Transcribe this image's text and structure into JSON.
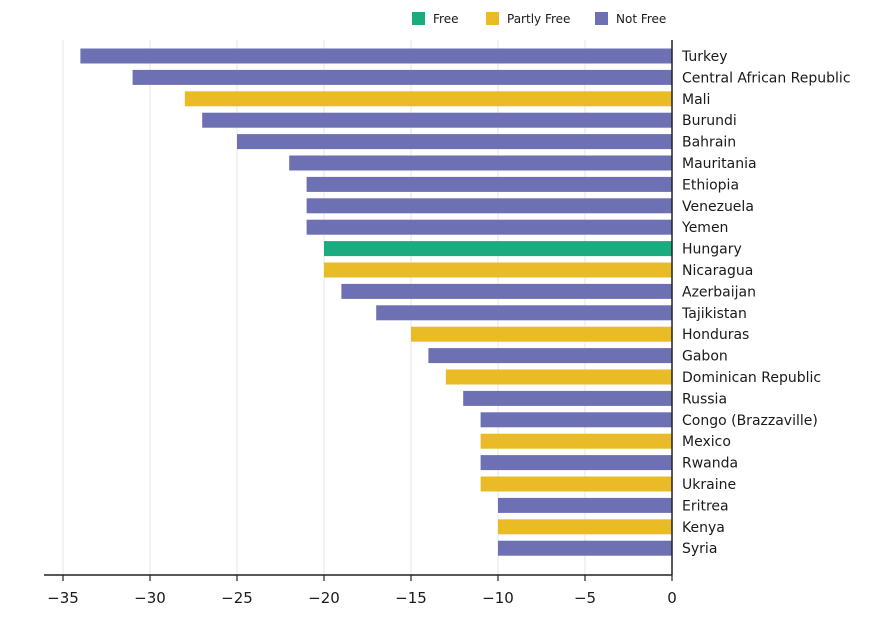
{
  "chart_data": {
    "type": "bar",
    "orientation": "horizontal",
    "title": "",
    "xlabel": "",
    "ylabel": "",
    "xlim": [
      -36,
      0
    ],
    "x_ticks": [
      -35,
      -30,
      -25,
      -20,
      -15,
      -10,
      -5,
      0
    ],
    "x_tick_labels": [
      "−35",
      "−30",
      "−25",
      "−20",
      "−15",
      "−10",
      "−5",
      "0"
    ],
    "grid": "vertical",
    "legend_position": "top-right",
    "statuses": [
      {
        "key": "free",
        "label": "Free",
        "color": "#1aab7f"
      },
      {
        "key": "partly",
        "label": "Partly Free",
        "color": "#e9bb27"
      },
      {
        "key": "notfree",
        "label": "Not Free",
        "color": "#6d70b3"
      }
    ],
    "bars": [
      {
        "country": "Turkey",
        "value": -34,
        "status": "notfree"
      },
      {
        "country": "Central African Republic",
        "value": -31,
        "status": "notfree"
      },
      {
        "country": "Mali",
        "value": -28,
        "status": "partly"
      },
      {
        "country": "Burundi",
        "value": -27,
        "status": "notfree"
      },
      {
        "country": "Bahrain",
        "value": -25,
        "status": "notfree"
      },
      {
        "country": "Mauritania",
        "value": -22,
        "status": "notfree"
      },
      {
        "country": "Ethiopia",
        "value": -21,
        "status": "notfree"
      },
      {
        "country": "Venezuela",
        "value": -21,
        "status": "notfree"
      },
      {
        "country": "Yemen",
        "value": -21,
        "status": "notfree"
      },
      {
        "country": "Hungary",
        "value": -20,
        "status": "free"
      },
      {
        "country": "Nicaragua",
        "value": -20,
        "status": "partly"
      },
      {
        "country": "Azerbaijan",
        "value": -19,
        "status": "notfree"
      },
      {
        "country": "Tajikistan",
        "value": -17,
        "status": "notfree"
      },
      {
        "country": "Honduras",
        "value": -15,
        "status": "partly"
      },
      {
        "country": "Gabon",
        "value": -14,
        "status": "notfree"
      },
      {
        "country": "Dominican Republic",
        "value": -13,
        "status": "partly"
      },
      {
        "country": "Russia",
        "value": -12,
        "status": "notfree"
      },
      {
        "country": "Congo (Brazzaville)",
        "value": -11,
        "status": "notfree"
      },
      {
        "country": "Mexico",
        "value": -11,
        "status": "partly"
      },
      {
        "country": "Rwanda",
        "value": -11,
        "status": "notfree"
      },
      {
        "country": "Ukraine",
        "value": -11,
        "status": "partly"
      },
      {
        "country": "Eritrea",
        "value": -10,
        "status": "notfree"
      },
      {
        "country": "Kenya",
        "value": -10,
        "status": "partly"
      },
      {
        "country": "Syria",
        "value": -10,
        "status": "notfree"
      }
    ]
  }
}
